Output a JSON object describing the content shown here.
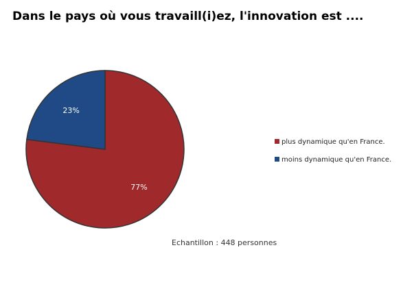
{
  "chart_data": {
    "type": "pie",
    "title": "Dans le pays où vous travaill(i)ez, l'innovation est ....",
    "categories": [
      "plus dynamique qu'en France.",
      "moins dynamique qu'en France."
    ],
    "values": [
      77,
      23
    ],
    "value_labels": [
      "77%",
      "23%"
    ],
    "colors": [
      "#a0292b",
      "#1f4a86"
    ],
    "annotation": "Echantillon : 448 personnes",
    "legend": "right"
  }
}
